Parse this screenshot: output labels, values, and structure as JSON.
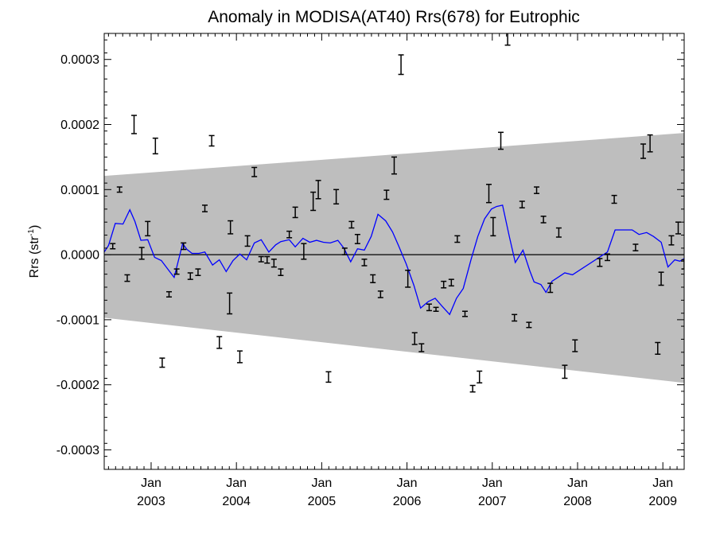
{
  "chart_data": {
    "type": "scatter",
    "title": "Anomaly in MODISA(AT40) Rrs(678) for Eutrophic",
    "ylabel_main": "Rrs (str",
    "ylabel_sup": "-1",
    "ylabel_close": ")",
    "xlim": [
      2002.45,
      2009.25
    ],
    "ylim": [
      -0.00033,
      0.00034
    ],
    "y_ticks": [
      {
        "value": 0.0003,
        "label": "0.0003"
      },
      {
        "value": 0.0002,
        "label": "0.0002"
      },
      {
        "value": 0.0001,
        "label": "0.0001"
      },
      {
        "value": 0.0,
        "label": "0.0000"
      },
      {
        "value": -0.0001,
        "label": "-0.0001"
      },
      {
        "value": -0.0002,
        "label": "-0.0002"
      },
      {
        "value": -0.0003,
        "label": "-0.0003"
      }
    ],
    "x_ticks": [
      {
        "value": 2003.0,
        "month": "Jan",
        "year": "2003"
      },
      {
        "value": 2004.0,
        "month": "Jan",
        "year": "2004"
      },
      {
        "value": 2005.0,
        "month": "Jan",
        "year": "2005"
      },
      {
        "value": 2006.0,
        "month": "Jan",
        "year": "2006"
      },
      {
        "value": 2007.0,
        "month": "Jan",
        "year": "2007"
      },
      {
        "value": 2008.0,
        "month": "Jan",
        "year": "2008"
      },
      {
        "value": 2009.0,
        "month": "Jan",
        "year": "2009"
      }
    ],
    "confidence_band": {
      "color": "#bebebe",
      "x": [
        2002.45,
        2009.25
      ],
      "upper": [
        0.000121,
        0.000187
      ],
      "lower": [
        -9.7e-05,
        -0.000197
      ]
    },
    "zero_line": 0.0,
    "series": [
      {
        "kind": "errorbar",
        "color": "#000000",
        "points": [
          {
            "x": 2002.55,
            "y": 1.3e-05,
            "err": 4e-06
          },
          {
            "x": 2002.63,
            "y": 0.0001,
            "err": 4e-06
          },
          {
            "x": 2002.72,
            "y": -3.6e-05,
            "err": 5e-06
          },
          {
            "x": 2002.8,
            "y": 0.0002,
            "err": 1.4e-05
          },
          {
            "x": 2002.89,
            "y": 2e-06,
            "err": 9e-06
          },
          {
            "x": 2002.96,
            "y": 4e-05,
            "err": 1.1e-05
          },
          {
            "x": 2003.05,
            "y": 0.000167,
            "err": 1.2e-05
          },
          {
            "x": 2003.13,
            "y": -0.000166,
            "err": 7e-06
          },
          {
            "x": 2003.21,
            "y": -6.1e-05,
            "err": 4e-06
          },
          {
            "x": 2003.3,
            "y": -2.6e-05,
            "err": 4e-06
          },
          {
            "x": 2003.38,
            "y": 1.3e-05,
            "err": 5e-06
          },
          {
            "x": 2003.46,
            "y": -3.3e-05,
            "err": 5e-06
          },
          {
            "x": 2003.55,
            "y": -2.7e-05,
            "err": 5e-06
          },
          {
            "x": 2003.63,
            "y": 7.1e-05,
            "err": 5e-06
          },
          {
            "x": 2003.71,
            "y": 0.000175,
            "err": 8e-06
          },
          {
            "x": 2003.8,
            "y": -0.000135,
            "err": 9e-06
          },
          {
            "x": 2003.92,
            "y": -7.5e-05,
            "err": 1.6e-05
          },
          {
            "x": 2003.93,
            "y": 4.2e-05,
            "err": 1e-05
          },
          {
            "x": 2004.04,
            "y": -0.000157,
            "err": 9e-06
          },
          {
            "x": 2004.13,
            "y": 2.1e-05,
            "err": 8e-06
          },
          {
            "x": 2004.21,
            "y": 0.000127,
            "err": 7e-06
          },
          {
            "x": 2004.29,
            "y": -7e-06,
            "err": 4e-06
          },
          {
            "x": 2004.36,
            "y": -8e-06,
            "err": 5e-06
          },
          {
            "x": 2004.44,
            "y": -1.3e-05,
            "err": 6e-06
          },
          {
            "x": 2004.52,
            "y": -2.7e-05,
            "err": 5e-06
          },
          {
            "x": 2004.62,
            "y": 3.1e-05,
            "err": 5e-06
          },
          {
            "x": 2004.69,
            "y": 6.5e-05,
            "err": 8e-06
          },
          {
            "x": 2004.79,
            "y": 5e-06,
            "err": 1.2e-05
          },
          {
            "x": 2004.9,
            "y": 8.2e-05,
            "err": 1.4e-05
          },
          {
            "x": 2004.96,
            "y": 0.0001,
            "err": 1.4e-05
          },
          {
            "x": 2005.08,
            "y": -0.000188,
            "err": 8e-06
          },
          {
            "x": 2005.17,
            "y": 8.9e-05,
            "err": 1.1e-05
          },
          {
            "x": 2005.27,
            "y": 5e-06,
            "err": 5e-06
          },
          {
            "x": 2005.35,
            "y": 4.6e-05,
            "err": 5e-06
          },
          {
            "x": 2005.42,
            "y": 2.4e-05,
            "err": 7e-06
          },
          {
            "x": 2005.5,
            "y": -1.2e-05,
            "err": 5e-06
          },
          {
            "x": 2005.6,
            "y": -3.7e-05,
            "err": 6e-06
          },
          {
            "x": 2005.69,
            "y": -6.1e-05,
            "err": 5e-06
          },
          {
            "x": 2005.76,
            "y": 9.2e-05,
            "err": 7e-06
          },
          {
            "x": 2005.85,
            "y": 0.000137,
            "err": 1.3e-05
          },
          {
            "x": 2005.93,
            "y": 0.000292,
            "err": 1.5e-05
          },
          {
            "x": 2006.01,
            "y": -3.7e-05,
            "err": 1.3e-05
          },
          {
            "x": 2006.09,
            "y": -0.000129,
            "err": 9e-06
          },
          {
            "x": 2006.17,
            "y": -0.000143,
            "err": 6e-06
          },
          {
            "x": 2006.26,
            "y": -8.1e-05,
            "err": 5e-06
          },
          {
            "x": 2006.34,
            "y": -8.4e-05,
            "err": 3e-06
          },
          {
            "x": 2006.43,
            "y": -4.6e-05,
            "err": 5e-06
          },
          {
            "x": 2006.52,
            "y": -4.3e-05,
            "err": 5e-06
          },
          {
            "x": 2006.59,
            "y": 2.4e-05,
            "err": 5e-06
          },
          {
            "x": 2006.68,
            "y": -9.1e-05,
            "err": 4e-06
          },
          {
            "x": 2006.77,
            "y": -0.000206,
            "err": 5e-06
          },
          {
            "x": 2006.85,
            "y": -0.000188,
            "err": 9e-06
          },
          {
            "x": 2006.96,
            "y": 9.4e-05,
            "err": 1.4e-05
          },
          {
            "x": 2007.01,
            "y": 4.3e-05,
            "err": 1.4e-05
          },
          {
            "x": 2007.1,
            "y": 0.000175,
            "err": 1.3e-05
          },
          {
            "x": 2007.18,
            "y": 0.000336,
            "err": 1.4e-05
          },
          {
            "x": 2007.26,
            "y": -9.7e-05,
            "err": 5e-06
          },
          {
            "x": 2007.35,
            "y": 7.7e-05,
            "err": 5e-06
          },
          {
            "x": 2007.43,
            "y": -0.000108,
            "err": 4e-06
          },
          {
            "x": 2007.52,
            "y": 9.9e-05,
            "err": 5e-06
          },
          {
            "x": 2007.6,
            "y": 5.4e-05,
            "err": 5e-06
          },
          {
            "x": 2007.68,
            "y": -5.1e-05,
            "err": 7e-06
          },
          {
            "x": 2007.78,
            "y": 3.4e-05,
            "err": 7e-06
          },
          {
            "x": 2007.85,
            "y": -0.00018,
            "err": 1e-05
          },
          {
            "x": 2007.97,
            "y": -0.00014,
            "err": 9e-06
          },
          {
            "x": 2008.26,
            "y": -1.2e-05,
            "err": 6e-06
          },
          {
            "x": 2008.35,
            "y": -4e-06,
            "err": 5e-06
          },
          {
            "x": 2008.43,
            "y": 8.5e-05,
            "err": 6e-06
          },
          {
            "x": 2008.68,
            "y": 1.1e-05,
            "err": 5e-06
          },
          {
            "x": 2008.77,
            "y": 0.000159,
            "err": 1.1e-05
          },
          {
            "x": 2008.85,
            "y": 0.000171,
            "err": 1.3e-05
          },
          {
            "x": 2008.94,
            "y": -0.000144,
            "err": 9e-06
          },
          {
            "x": 2008.98,
            "y": -3.7e-05,
            "err": 1e-05
          },
          {
            "x": 2009.1,
            "y": 2.2e-05,
            "err": 7e-06
          },
          {
            "x": 2009.18,
            "y": 4.1e-05,
            "err": 9e-06
          },
          {
            "x": 2009.25,
            "y": -1.5e-05,
            "err": 7e-06
          }
        ]
      },
      {
        "kind": "line",
        "color": "#0000ff",
        "x": [
          2002.45,
          2002.5,
          2002.58,
          2002.67,
          2002.75,
          2002.81,
          2002.88,
          2002.96,
          2003.04,
          2003.12,
          2003.2,
          2003.27,
          2003.37,
          2003.42,
          2003.48,
          2003.56,
          2003.63,
          2003.72,
          2003.8,
          2003.88,
          2003.96,
          2004.04,
          2004.12,
          2004.21,
          2004.29,
          2004.38,
          2004.46,
          2004.52,
          2004.62,
          2004.69,
          2004.78,
          2004.86,
          2004.94,
          2005.02,
          2005.1,
          2005.19,
          2005.26,
          2005.34,
          2005.42,
          2005.5,
          2005.58,
          2005.66,
          2005.75,
          2005.83,
          2005.9,
          2005.99,
          2006.08,
          2006.16,
          2006.25,
          2006.33,
          2006.41,
          2006.5,
          2006.58,
          2006.66,
          2006.75,
          2006.83,
          2006.91,
          2006.99,
          2007.05,
          2007.12,
          2007.2,
          2007.27,
          2007.36,
          2007.44,
          2007.49,
          2007.57,
          2007.63,
          2007.7,
          2007.77,
          2007.85,
          2007.94,
          2008.35,
          2008.44,
          2008.64,
          2008.72,
          2008.81,
          2008.89,
          2008.98,
          2009.06,
          2009.14,
          2009.2,
          2009.25
        ],
        "y": [
          4e-06,
          1.4e-05,
          4.8e-05,
          4.7e-05,
          6.9e-05,
          5.1e-05,
          2.2e-05,
          2.3e-05,
          -4e-06,
          -9e-06,
          -2.3e-05,
          -3.5e-05,
          1.7e-05,
          8e-06,
          2e-06,
          2e-06,
          4e-06,
          -1.6e-05,
          -8e-06,
          -2.6e-05,
          -9e-06,
          1e-06,
          -8e-06,
          1.8e-05,
          2.3e-05,
          4e-06,
          1.5e-05,
          2e-05,
          2.3e-05,
          1.2e-05,
          2.5e-05,
          1.9e-05,
          2.2e-05,
          1.9e-05,
          1.8e-05,
          2.2e-05,
          1e-05,
          -1.1e-05,
          9e-06,
          7e-06,
          2.8e-05,
          6.2e-05,
          5.2e-05,
          3.5e-05,
          1.4e-05,
          -1.4e-05,
          -4.7e-05,
          -8.2e-05,
          -7.2e-05,
          -6.7e-05,
          -7.9e-05,
          -9.2e-05,
          -6.7e-05,
          -5.2e-05,
          -8e-06,
          2.8e-05,
          5.5e-05,
          7e-05,
          7.4e-05,
          7.6e-05,
          2.8e-05,
          -1.2e-05,
          7e-06,
          -2.5e-05,
          -4.2e-05,
          -4.6e-05,
          -5.8e-05,
          -4.1e-05,
          -3.5e-05,
          -2.8e-05,
          -3.1e-05,
          4e-06,
          3.8e-05,
          3.8e-05,
          3.1e-05,
          3.4e-05,
          2.8e-05,
          1.9e-05,
          -1.9e-05,
          -8e-06,
          -1e-05,
          -6e-06
        ]
      }
    ]
  }
}
